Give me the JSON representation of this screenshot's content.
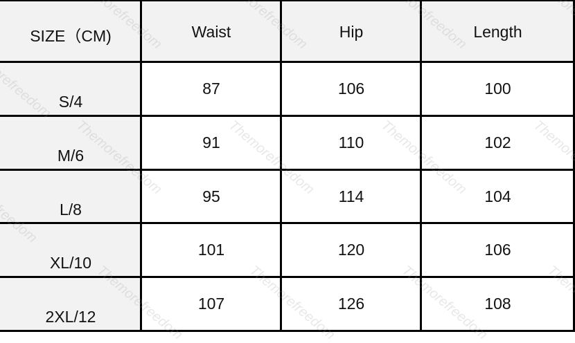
{
  "watermark": "Themorefreedom",
  "table": {
    "headers": [
      "SIZE（CM)",
      "Waist",
      "Hip",
      "Length"
    ],
    "rows": [
      {
        "size": "S/4",
        "waist": "87",
        "hip": "106",
        "length": "100"
      },
      {
        "size": "M/6",
        "waist": "91",
        "hip": "110",
        "length": "102"
      },
      {
        "size": "L/8",
        "waist": "95",
        "hip": "114",
        "length": "104"
      },
      {
        "size": "XL/10",
        "waist": "101",
        "hip": "120",
        "length": "106"
      },
      {
        "size": "2XL/12",
        "waist": "107",
        "hip": "126",
        "length": "108"
      }
    ]
  }
}
